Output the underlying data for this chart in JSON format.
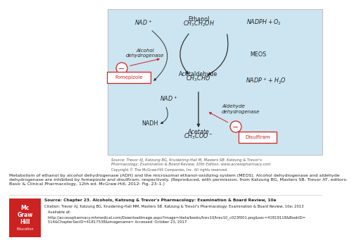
{
  "bg_color": "#cce5f0",
  "white_bg": "#ffffff",
  "red_color": "#cc2222",
  "mcgh_red": "#cc2222",
  "dark_gray": "#555555",
  "arrow_color": "#333333",
  "text_color": "#222222",
  "source_text": "Source: Trevor AJ, Katzung BG, Kruidering-Hall M, Masters SB: Katzung & Trevor's\nPharmacology: Examination & Board Review, 10th Edition. www.accesspharmacy.com",
  "copyright_text": "Copyright © The McGraw-Hill Companies, Inc. All rights reserved.",
  "caption": "Metabolism of ethanol by alcohol dehydrogenase (ADH) and the microsomal ethanol-oxidizing system (MEOS). Alcohol dehydrogenase and aldehyde\ndehydrogenase are inhibited by fomepizole and disulfiram, respectively. (Reproduced, with permission, from Katzung BG, Masters SB, Trevor AT, editors:\nBasic & Clinical Pharmacology, 12th ed. McGraw-Hill, 2012: Fig. 23–1.)",
  "citation_source": "Source: Chapter 23. Alcohols, Katzung & Trevor's Pharmacology: Examination & Board Review, 10e",
  "citation_line2": "Citation: Trevor AJ, Katzung BG, Kruidering-Hall MM, Masters SB. Katzung & Trevor's Pharmacology: Examination & Board Review, 10e; 2013",
  "citation_line3": "   Available at:",
  "citation_line4": "   http://accesspharmacy.mhmedical.com/DownloadImage.aspx?image=/data/books/trev10/trev10_c023f001.png&sec=41819118&BookID=",
  "citation_line5": "   514&ChapterSecID=41817538&imagename= Accessed: October 23, 2017",
  "fomepizole": "Fomepizole",
  "disulfiram": "Disulfiram"
}
